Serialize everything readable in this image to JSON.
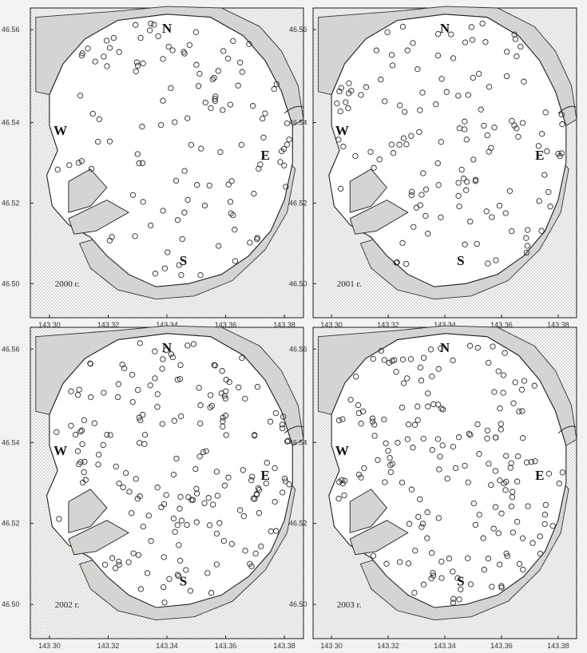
{
  "figure": {
    "panels": [
      {
        "year_label": "2000 г.",
        "y_ticks": [
          "46.56",
          "46.54",
          "46.52",
          "46.50"
        ],
        "x_ticks": [
          "143 30",
          "143.32",
          "143.34",
          "143.36",
          "143.38"
        ],
        "compass": {
          "north": "N",
          "south": "S",
          "east": "E",
          "west": "W"
        }
      },
      {
        "year_label": "2001 г.",
        "y_ticks": [
          "46.56",
          "46.54",
          "46.52",
          "46.50"
        ],
        "x_ticks": [
          "143 30",
          "143.32",
          "143.34",
          "143.36",
          "143.38"
        ],
        "compass": {
          "north": "N",
          "south": "S",
          "east": "E",
          "west": "W"
        }
      },
      {
        "year_label": "2002 г.",
        "y_ticks": [
          "46.56",
          "46.54",
          "46.52",
          "46.50"
        ],
        "x_ticks": [
          "143 30",
          "143.32",
          "143.34",
          "143.36",
          "143.38"
        ],
        "compass": {
          "north": "N",
          "south": "S",
          "east": "E",
          "west": "W"
        }
      },
      {
        "year_label": "2003 г.",
        "y_ticks": [
          "46.56",
          "46.54",
          "46.52",
          "46.50"
        ],
        "x_ticks": [
          "143 30",
          "143.32",
          "143.34",
          "143.36",
          "143.38"
        ],
        "compass": {
          "north": "N",
          "south": "S",
          "east": "E",
          "west": "W"
        }
      }
    ],
    "colors": {
      "land_stipple": "#8a8a8a",
      "water": "#ffffff",
      "shoal": "#d4d4d2",
      "station_marker": "#2a2a2a"
    },
    "marker": "open-circle",
    "station_counts_note": "stations shown as open circles per year"
  }
}
